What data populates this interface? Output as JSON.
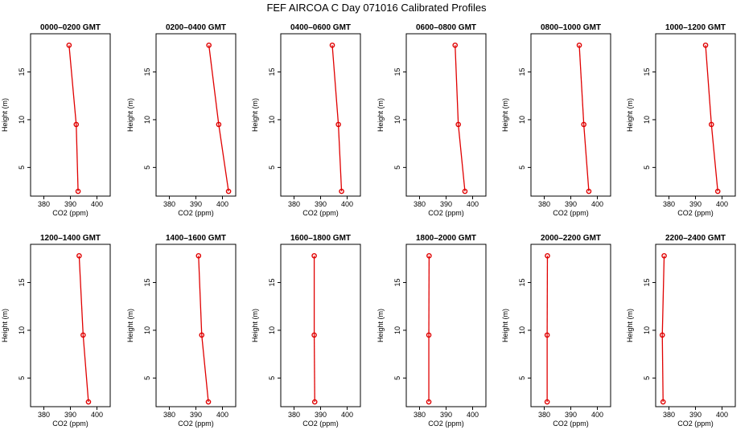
{
  "chart_data": {
    "type": "line",
    "title": "FEF  AIRCOA C  Day 071016  Calibrated Profiles",
    "xlabel": "CO2 (ppm)",
    "ylabel": "Height (m)",
    "xlim": [
      375,
      405
    ],
    "ylim": [
      2,
      19
    ],
    "xticks": [
      380,
      390,
      400
    ],
    "yticks": [
      5,
      10,
      15
    ],
    "color": "#e00000",
    "panels": [
      {
        "title": "0000–0200 GMT",
        "x": [
          392.9,
          392.2,
          389.5
        ],
        "y": [
          2.5,
          9.5,
          17.8
        ]
      },
      {
        "title": "0200–0400 GMT",
        "x": [
          402.3,
          398.6,
          394.9
        ],
        "y": [
          2.5,
          9.5,
          17.8
        ]
      },
      {
        "title": "0400–0600 GMT",
        "x": [
          397.9,
          396.7,
          394.4
        ],
        "y": [
          2.5,
          9.5,
          17.8
        ]
      },
      {
        "title": "0600–0800 GMT",
        "x": [
          397.1,
          394.6,
          393.4
        ],
        "y": [
          2.5,
          9.5,
          17.8
        ]
      },
      {
        "title": "0800–1000 GMT",
        "x": [
          396.8,
          394.9,
          393.2
        ],
        "y": [
          2.5,
          9.5,
          17.8
        ]
      },
      {
        "title": "1000–1200 GMT",
        "x": [
          398.4,
          396.0,
          393.8
        ],
        "y": [
          2.5,
          9.5,
          17.8
        ]
      },
      {
        "title": "1200–1400 GMT",
        "x": [
          396.8,
          394.8,
          393.3
        ],
        "y": [
          2.5,
          9.5,
          17.8
        ]
      },
      {
        "title": "1400–1600 GMT",
        "x": [
          394.7,
          392.2,
          391.0
        ],
        "y": [
          2.5,
          9.5,
          17.8
        ]
      },
      {
        "title": "1600–1800 GMT",
        "x": [
          387.8,
          387.6,
          387.6
        ],
        "y": [
          2.5,
          9.5,
          17.8
        ]
      },
      {
        "title": "1800–2000 GMT",
        "x": [
          383.5,
          383.5,
          383.6
        ],
        "y": [
          2.5,
          9.5,
          17.8
        ]
      },
      {
        "title": "2000–2200 GMT",
        "x": [
          381.1,
          381.1,
          381.2
        ],
        "y": [
          2.5,
          9.5,
          17.8
        ]
      },
      {
        "title": "2200–2400 GMT",
        "x": [
          377.8,
          377.5,
          378.2
        ],
        "y": [
          2.5,
          9.5,
          17.8
        ]
      }
    ]
  }
}
